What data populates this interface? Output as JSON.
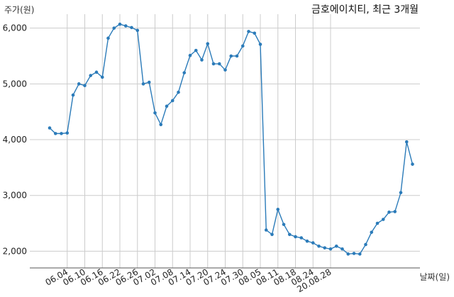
{
  "chart_data": {
    "type": "line",
    "title": "금호에이치티, 최근 3개월",
    "xlabel": "날짜(일)",
    "ylabel": "주가(원)",
    "ylim": [
      1700,
      6250
    ],
    "yticks": [
      2000,
      3000,
      4000,
      5000,
      6000
    ],
    "ytick_labels": [
      "2,000",
      "3,000",
      "4,000",
      "5,000",
      "6,000"
    ],
    "xtick_labels": [
      "06.04",
      "06.10",
      "06.16",
      "06.22",
      "06.26",
      "07.02",
      "07.08",
      "07.14",
      "07.20",
      "07.24",
      "07.30",
      "08.05",
      "08.11",
      "08.18",
      "08.24",
      "20.08.28"
    ],
    "xtick_positions": [
      3,
      6,
      9,
      12,
      15,
      18,
      21,
      24,
      27,
      30,
      33,
      36,
      39,
      42,
      45,
      48
    ],
    "grid": true,
    "series_color": "#2b7bb9",
    "values": [
      4210,
      4110,
      4110,
      4120,
      4800,
      5000,
      4970,
      5150,
      5210,
      5120,
      5820,
      6000,
      6070,
      6040,
      6010,
      5960,
      5000,
      5030,
      4480,
      4270,
      4600,
      4700,
      4850,
      5200,
      5510,
      5600,
      5430,
      5720,
      5360,
      5360,
      5250,
      5500,
      5500,
      5680,
      5940,
      5910,
      5710,
      2380,
      2300,
      2750,
      2480,
      2300,
      2260,
      2240,
      2180,
      2150,
      2090,
      2060,
      2040,
      2090,
      2040,
      1950,
      1960,
      1950,
      2120,
      2340,
      2500,
      2570,
      2700,
      2710,
      3050,
      3960,
      3560
    ]
  }
}
